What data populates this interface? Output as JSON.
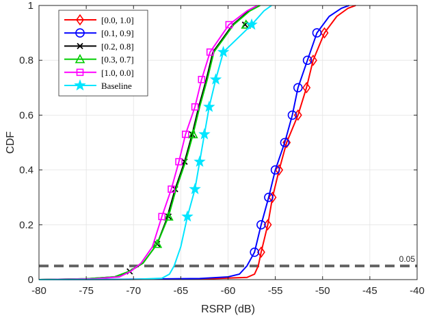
{
  "chart_data": {
    "type": "line",
    "xlabel": "RSRP (dB)",
    "ylabel": "CDF",
    "xlim": [
      -80,
      -40
    ],
    "ylim": [
      0,
      1
    ],
    "x_ticks": [
      -80,
      -75,
      -70,
      -65,
      -60,
      -55,
      -50,
      -45,
      -40
    ],
    "y_ticks": [
      0,
      0.2,
      0.4,
      0.6,
      0.8,
      1
    ],
    "x_tick_labels": [
      "-80",
      "-75",
      "-70",
      "-65",
      "-60",
      "-55",
      "-50",
      "-45",
      "-40"
    ],
    "y_tick_labels": [
      "0",
      "0.2",
      "0.4",
      "0.6",
      "0.8",
      "1"
    ],
    "grid": true,
    "legend_position": "top-left",
    "series": [
      {
        "name": "[0.0, 1.0]",
        "color": "#ff0000",
        "marker": "diamond",
        "points": [
          [
            -80,
            0
          ],
          [
            -70,
            0.001
          ],
          [
            -62,
            0.003
          ],
          [
            -58,
            0.008
          ],
          [
            -57.2,
            0.02
          ],
          [
            -56.8,
            0.05
          ],
          [
            -56.5,
            0.1
          ],
          [
            -55.8,
            0.2
          ],
          [
            -55.3,
            0.3
          ],
          [
            -54.6,
            0.4
          ],
          [
            -53.8,
            0.5
          ],
          [
            -52.6,
            0.6
          ],
          [
            -51.7,
            0.7
          ],
          [
            -51.0,
            0.8
          ],
          [
            -49.8,
            0.9
          ],
          [
            -48.5,
            0.96
          ],
          [
            -47.3,
            0.99
          ],
          [
            -46.5,
            1.0
          ]
        ],
        "markers": [
          [
            -56.5,
            0.1
          ],
          [
            -55.8,
            0.2
          ],
          [
            -55.3,
            0.3
          ],
          [
            -54.6,
            0.4
          ],
          [
            -53.8,
            0.5
          ],
          [
            -52.6,
            0.6
          ],
          [
            -51.7,
            0.7
          ],
          [
            -51.0,
            0.8
          ],
          [
            -49.8,
            0.9
          ]
        ]
      },
      {
        "name": "[0.1, 0.9]",
        "color": "#0000ff",
        "marker": "circle",
        "points": [
          [
            -80,
            0
          ],
          [
            -72,
            0.001
          ],
          [
            -63,
            0.004
          ],
          [
            -60,
            0.01
          ],
          [
            -58.8,
            0.02
          ],
          [
            -58.0,
            0.05
          ],
          [
            -57.2,
            0.1
          ],
          [
            -56.5,
            0.2
          ],
          [
            -55.7,
            0.3
          ],
          [
            -55.0,
            0.4
          ],
          [
            -54.0,
            0.5
          ],
          [
            -53.2,
            0.6
          ],
          [
            -52.6,
            0.7
          ],
          [
            -51.6,
            0.8
          ],
          [
            -50.6,
            0.9
          ],
          [
            -49.3,
            0.96
          ],
          [
            -48.0,
            0.99
          ],
          [
            -47.2,
            1.0
          ]
        ],
        "markers": [
          [
            -57.2,
            0.1
          ],
          [
            -56.5,
            0.2
          ],
          [
            -55.7,
            0.3
          ],
          [
            -55.0,
            0.4
          ],
          [
            -54.0,
            0.5
          ],
          [
            -53.2,
            0.6
          ],
          [
            -52.6,
            0.7
          ],
          [
            -51.6,
            0.8
          ],
          [
            -50.6,
            0.9
          ]
        ]
      },
      {
        "name": "[0.2, 0.8]",
        "color": "#000000",
        "marker": "x",
        "points": [
          [
            -80,
            0
          ],
          [
            -75,
            0.003
          ],
          [
            -72,
            0.01
          ],
          [
            -70.4,
            0.03
          ],
          [
            -69,
            0.06
          ],
          [
            -67.5,
            0.13
          ],
          [
            -66.5,
            0.22
          ],
          [
            -65.6,
            0.33
          ],
          [
            -64.6,
            0.43
          ],
          [
            -63.8,
            0.53
          ],
          [
            -63.1,
            0.63
          ],
          [
            -62.3,
            0.73
          ],
          [
            -61.6,
            0.83
          ],
          [
            -59.5,
            0.93
          ],
          [
            -57.8,
            0.98
          ],
          [
            -56.7,
            1.0
          ]
        ],
        "markers": [
          [
            -70.4,
            0.03
          ],
          [
            -67.5,
            0.13
          ],
          [
            -66.3,
            0.23
          ],
          [
            -65.6,
            0.33
          ],
          [
            -64.6,
            0.43
          ],
          [
            -63.8,
            0.53
          ],
          [
            -58.2,
            0.93
          ]
        ]
      },
      {
        "name": "[0.3, 0.7]",
        "color": "#00cc00",
        "marker": "triangle",
        "points": [
          [
            -80,
            0
          ],
          [
            -75,
            0.003
          ],
          [
            -72,
            0.01
          ],
          [
            -70.5,
            0.03
          ],
          [
            -69,
            0.06
          ],
          [
            -67.5,
            0.13
          ],
          [
            -66.3,
            0.23
          ],
          [
            -65.5,
            0.33
          ],
          [
            -64.5,
            0.43
          ],
          [
            -63.7,
            0.53
          ],
          [
            -63.0,
            0.63
          ],
          [
            -62.2,
            0.73
          ],
          [
            -61.5,
            0.83
          ],
          [
            -59.4,
            0.93
          ],
          [
            -57.7,
            0.98
          ],
          [
            -56.6,
            1.0
          ]
        ],
        "markers": [
          [
            -67.5,
            0.13
          ],
          [
            -66.3,
            0.23
          ],
          [
            -63.7,
            0.53
          ],
          [
            -58.1,
            0.93
          ]
        ]
      },
      {
        "name": "[1.0, 0.0]",
        "color": "#ff00ff",
        "marker": "square",
        "points": [
          [
            -80,
            0
          ],
          [
            -74,
            0.003
          ],
          [
            -71.5,
            0.01
          ],
          [
            -70.3,
            0.03
          ],
          [
            -69.2,
            0.06
          ],
          [
            -68.0,
            0.12
          ],
          [
            -67.0,
            0.23
          ],
          [
            -66.0,
            0.33
          ],
          [
            -65.2,
            0.43
          ],
          [
            -64.5,
            0.53
          ],
          [
            -63.5,
            0.63
          ],
          [
            -62.8,
            0.73
          ],
          [
            -61.9,
            0.83
          ],
          [
            -59.9,
            0.93
          ],
          [
            -58.0,
            0.98
          ],
          [
            -56.9,
            1.0
          ]
        ],
        "markers": [
          [
            -67.0,
            0.23
          ],
          [
            -66.0,
            0.33
          ],
          [
            -65.2,
            0.43
          ],
          [
            -64.5,
            0.53
          ],
          [
            -63.5,
            0.63
          ],
          [
            -62.8,
            0.73
          ],
          [
            -61.9,
            0.83
          ],
          [
            -59.9,
            0.93
          ]
        ]
      },
      {
        "name": "Baseline",
        "color": "#00e5ff",
        "marker": "star",
        "points": [
          [
            -80,
            0
          ],
          [
            -70,
            0.001
          ],
          [
            -67,
            0.005
          ],
          [
            -66.2,
            0.02
          ],
          [
            -65.7,
            0.05
          ],
          [
            -65.0,
            0.12
          ],
          [
            -64.3,
            0.23
          ],
          [
            -63.5,
            0.33
          ],
          [
            -63.0,
            0.43
          ],
          [
            -62.5,
            0.53
          ],
          [
            -62.0,
            0.63
          ],
          [
            -61.3,
            0.73
          ],
          [
            -60.5,
            0.83
          ],
          [
            -57.5,
            0.93
          ],
          [
            -56.2,
            0.98
          ],
          [
            -55.4,
            1.0
          ]
        ],
        "markers": [
          [
            -64.3,
            0.23
          ],
          [
            -63.5,
            0.33
          ],
          [
            -63.0,
            0.43
          ],
          [
            -62.5,
            0.53
          ],
          [
            -62.0,
            0.63
          ],
          [
            -61.3,
            0.73
          ],
          [
            -60.5,
            0.83
          ],
          [
            -57.5,
            0.93
          ]
        ]
      }
    ],
    "reference_line": {
      "y": 0.05,
      "label": "0.05",
      "color": "#666666",
      "style": "dashed"
    }
  }
}
